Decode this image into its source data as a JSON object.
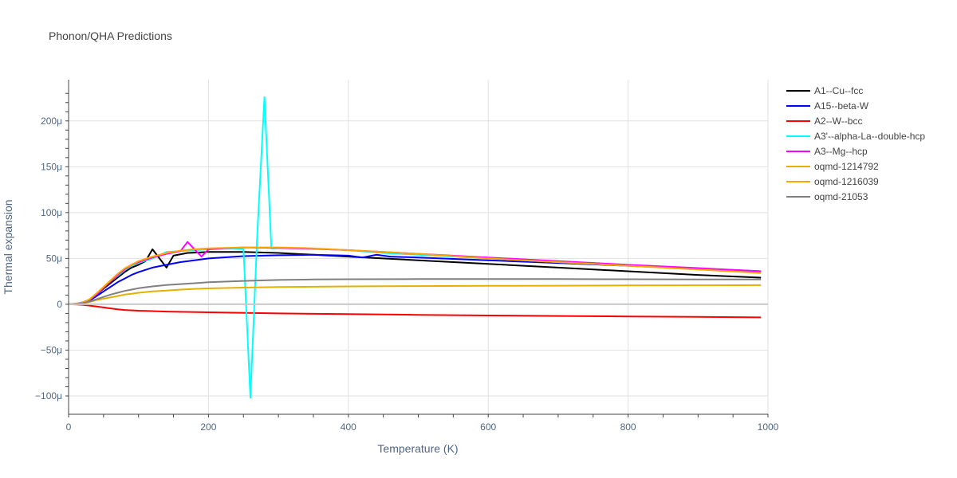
{
  "chart_data": {
    "type": "line",
    "title": "Phonon/QHA Predictions",
    "xlabel": "Temperature (K)",
    "ylabel": "Thermal expansion",
    "xlim": [
      0,
      1000
    ],
    "ylim": [
      -120,
      245
    ],
    "x_ticks": [
      0,
      200,
      400,
      600,
      800,
      1000
    ],
    "x_tick_labels": [
      "0",
      "200",
      "400",
      "600",
      "800",
      "1000"
    ],
    "y_ticks": [
      -100,
      -50,
      0,
      50,
      100,
      150,
      200
    ],
    "y_tick_labels": [
      "−100μ",
      "−50μ",
      "0",
      "50μ",
      "100μ",
      "150μ",
      "200μ"
    ],
    "y_unit_note": "values in units of 1e-6 (μ)",
    "grid": true,
    "legend_position": "right",
    "series": [
      {
        "name": "A1--Cu--fcc",
        "color": "#000000",
        "x": [
          0,
          10,
          20,
          30,
          40,
          50,
          60,
          70,
          80,
          90,
          100,
          110,
          120,
          130,
          140,
          150,
          170,
          200,
          250,
          300,
          350,
          400,
          500,
          600,
          700,
          800,
          900,
          990
        ],
        "y": [
          0,
          0.5,
          2,
          5,
          11,
          17,
          23,
          29,
          35,
          40,
          43,
          47,
          60,
          50,
          40,
          53,
          56,
          57,
          57,
          56,
          54,
          52,
          48,
          44,
          40,
          36,
          32,
          29
        ]
      },
      {
        "name": "A15--beta-W",
        "color": "#0000ff",
        "x": [
          0,
          10,
          20,
          30,
          40,
          50,
          60,
          70,
          80,
          90,
          100,
          120,
          140,
          160,
          180,
          200,
          250,
          300,
          350,
          400,
          420,
          440,
          460,
          500,
          600,
          700,
          800,
          900,
          990
        ],
        "y": [
          0,
          0.4,
          1.5,
          4,
          9,
          14,
          19,
          24,
          28,
          32,
          35,
          40,
          43,
          46,
          48,
          50,
          52.5,
          53.5,
          54,
          53,
          51,
          54,
          52,
          51,
          48,
          45,
          42,
          39,
          36
        ]
      },
      {
        "name": "A2--W--bcc",
        "color": "#ff0000",
        "x": [
          0,
          10,
          20,
          30,
          40,
          50,
          60,
          70,
          80,
          100,
          120,
          140,
          200,
          300,
          400,
          500,
          600,
          700,
          800,
          900,
          990
        ],
        "y": [
          0,
          -0.2,
          -0.6,
          -1.5,
          -2.5,
          -3.5,
          -4.5,
          -5.5,
          -6.2,
          -7,
          -7.5,
          -8,
          -8.8,
          -10,
          -10.8,
          -11.5,
          -12.2,
          -12.8,
          -13.3,
          -13.8,
          -14.3
        ]
      },
      {
        "name": "A3'--alpha-La--double-hcp",
        "color": "#00ffff",
        "x": [
          0,
          10,
          20,
          30,
          40,
          50,
          60,
          70,
          80,
          90,
          100,
          120,
          140,
          160,
          180,
          200,
          220,
          240,
          250,
          260,
          270,
          280,
          290,
          300,
          350,
          400,
          450,
          500,
          600,
          700,
          800,
          900,
          990
        ],
        "y": [
          0,
          0.5,
          2,
          5,
          11,
          18,
          25,
          31,
          37,
          42,
          45,
          50,
          57,
          58,
          59,
          60,
          60.5,
          61,
          60,
          -102,
          80,
          226,
          61,
          61.5,
          60.5,
          59,
          56,
          54,
          50,
          46,
          42,
          38,
          35
        ]
      },
      {
        "name": "A3--Mg--hcp",
        "color": "#ff00ff",
        "x": [
          0,
          10,
          20,
          30,
          40,
          50,
          60,
          70,
          80,
          90,
          100,
          120,
          140,
          160,
          170,
          180,
          190,
          200,
          220,
          250,
          300,
          350,
          400,
          500,
          600,
          700,
          800,
          900,
          990
        ],
        "y": [
          0,
          0.5,
          2,
          5,
          11,
          18,
          25,
          32,
          38,
          43,
          46,
          51,
          55,
          58,
          68,
          60,
          52,
          60,
          61,
          62,
          61.5,
          60.5,
          59,
          55,
          51,
          47,
          43,
          39.5,
          36
        ]
      },
      {
        "name": "oqmd-1214792",
        "color": "#e6b000",
        "x": [
          0,
          10,
          20,
          30,
          40,
          50,
          60,
          70,
          80,
          90,
          100,
          120,
          140,
          160,
          180,
          200,
          250,
          300,
          400,
          500,
          600,
          700,
          800,
          900,
          990
        ],
        "y": [
          0,
          0.3,
          1,
          2.5,
          4.5,
          6,
          7.5,
          9,
          10.5,
          11.5,
          12.5,
          14,
          15,
          16,
          16.8,
          17.3,
          18.2,
          18.8,
          19.5,
          19.8,
          20.1,
          20.3,
          20.5,
          20.7,
          20.9
        ]
      },
      {
        "name": "oqmd-1216039",
        "color": "#ffa500",
        "x": [
          0,
          10,
          20,
          30,
          40,
          50,
          60,
          70,
          80,
          90,
          100,
          120,
          140,
          160,
          180,
          200,
          250,
          300,
          350,
          400,
          500,
          600,
          700,
          800,
          900,
          990
        ],
        "y": [
          0,
          0.5,
          2,
          5.5,
          12,
          19,
          26,
          33,
          39,
          43,
          47,
          52,
          56,
          58.5,
          60,
          61,
          62,
          62,
          61,
          59,
          55,
          50,
          46,
          42,
          38,
          34
        ]
      },
      {
        "name": "oqmd-21053",
        "color": "#808080",
        "x": [
          0,
          10,
          20,
          30,
          40,
          50,
          60,
          70,
          80,
          90,
          100,
          120,
          140,
          160,
          180,
          200,
          250,
          300,
          350,
          400,
          500,
          600,
          700,
          800,
          900,
          990
        ],
        "y": [
          0,
          0.4,
          1.2,
          3,
          5.5,
          8,
          10.5,
          12.5,
          14.5,
          16,
          17.5,
          19.5,
          21,
          22,
          23,
          24,
          25.5,
          26.5,
          27,
          27.3,
          27.5,
          27.6,
          27.5,
          27.3,
          27.1,
          27
        ]
      }
    ]
  }
}
